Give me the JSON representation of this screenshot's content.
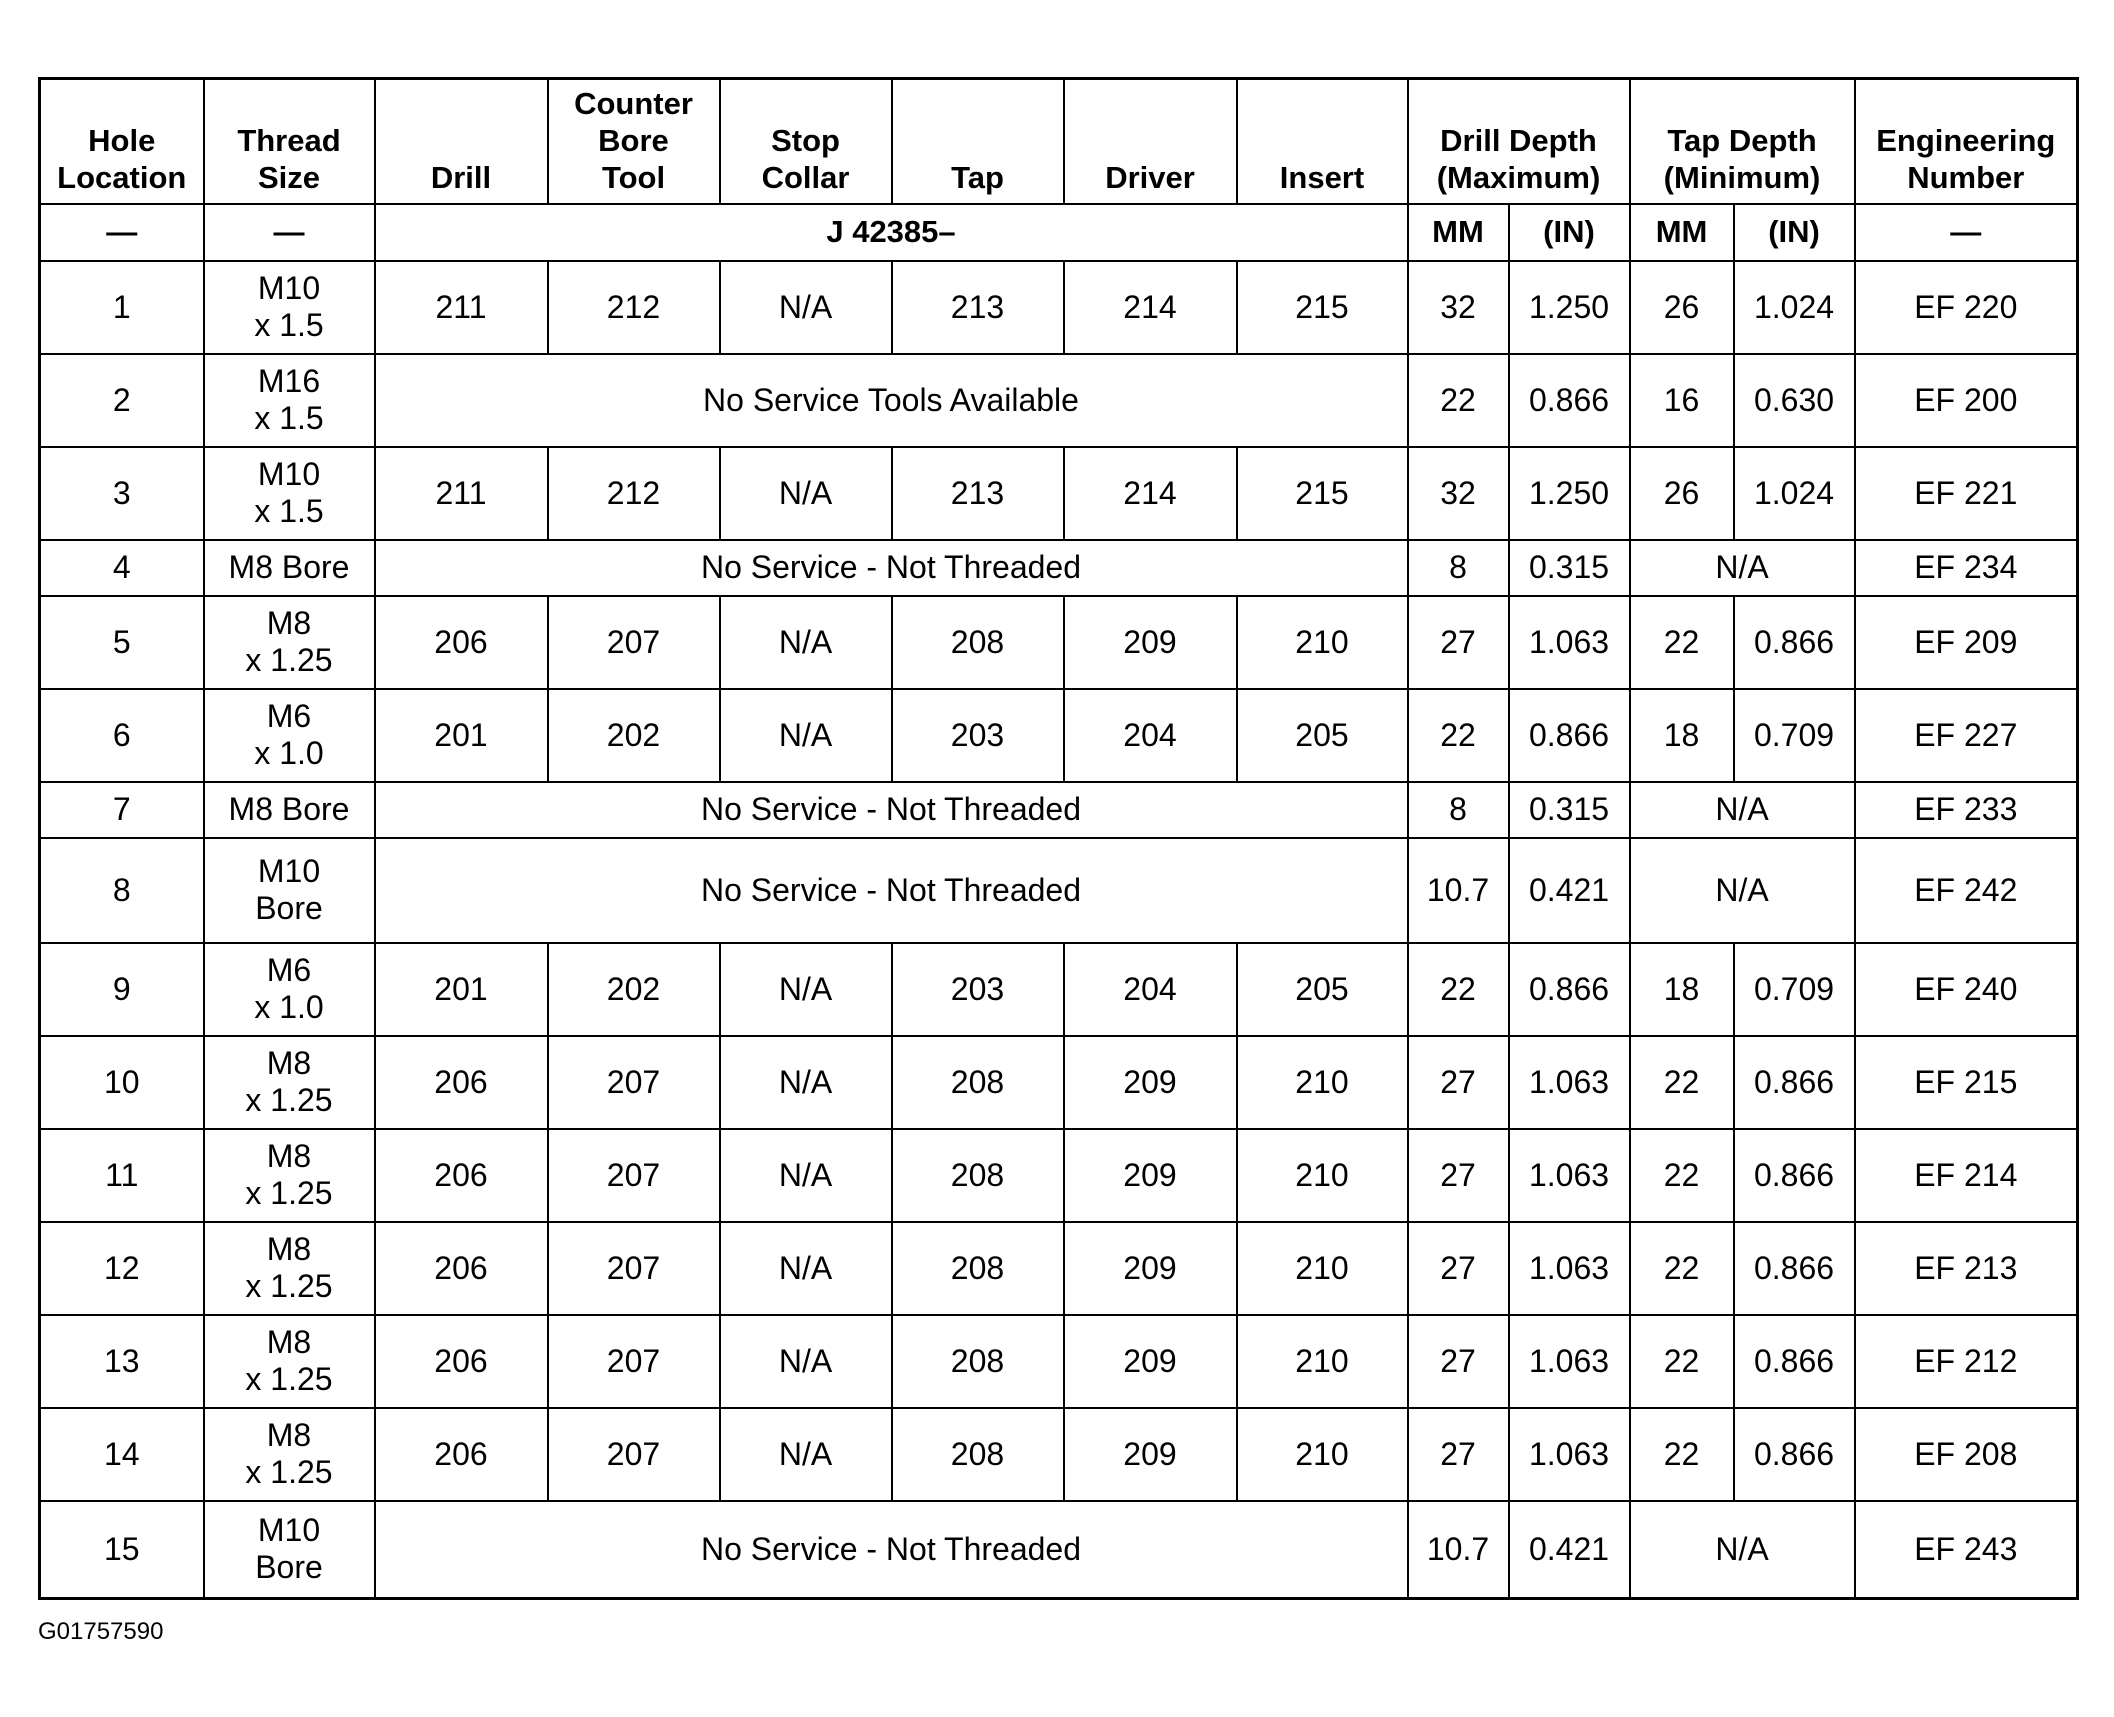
{
  "table": {
    "header": [
      "Hole\nLocation",
      "Thread\nSize",
      "Drill",
      "Counter\nBore\nTool",
      "Stop\nCollar",
      "Tap",
      "Driver",
      "Insert",
      "Drill Depth\n(Maximum)",
      "Tap Depth\n(Minimum)",
      "Engineering\nNumber"
    ],
    "subheader": [
      "—",
      "—",
      "J 42385–",
      "MM",
      "(IN)",
      "MM",
      "(IN)",
      "—"
    ],
    "rows": [
      [
        "1",
        "M10\nx 1.5",
        "211",
        "212",
        "N/A",
        "213",
        "214",
        "215",
        "32",
        "1.250",
        "26",
        "1.024",
        "EF 220"
      ],
      [
        "2",
        "M16\nx 1.5",
        "No Service Tools Available",
        "22",
        "0.866",
        "16",
        "0.630",
        "EF 200"
      ],
      [
        "3",
        "M10\nx 1.5",
        "211",
        "212",
        "N/A",
        "213",
        "214",
        "215",
        "32",
        "1.250",
        "26",
        "1.024",
        "EF 221"
      ],
      [
        "4",
        "M8 Bore",
        "No Service - Not Threaded",
        "8",
        "0.315",
        "N/A",
        "EF 234"
      ],
      [
        "5",
        "M8\nx 1.25",
        "206",
        "207",
        "N/A",
        "208",
        "209",
        "210",
        "27",
        "1.063",
        "22",
        "0.866",
        "EF 209"
      ],
      [
        "6",
        "M6\nx 1.0",
        "201",
        "202",
        "N/A",
        "203",
        "204",
        "205",
        "22",
        "0.866",
        "18",
        "0.709",
        "EF 227"
      ],
      [
        "7",
        "M8 Bore",
        "No Service - Not Threaded",
        "8",
        "0.315",
        "N/A",
        "EF 233"
      ],
      [
        "8",
        "M10\nBore",
        "No Service - Not Threaded",
        "10.7",
        "0.421",
        "N/A",
        "EF 242"
      ],
      [
        "9",
        "M6\nx 1.0",
        "201",
        "202",
        "N/A",
        "203",
        "204",
        "205",
        "22",
        "0.866",
        "18",
        "0.709",
        "EF 240"
      ],
      [
        "10",
        "M8\nx 1.25",
        "206",
        "207",
        "N/A",
        "208",
        "209",
        "210",
        "27",
        "1.063",
        "22",
        "0.866",
        "EF 215"
      ],
      [
        "11",
        "M8\nx 1.25",
        "206",
        "207",
        "N/A",
        "208",
        "209",
        "210",
        "27",
        "1.063",
        "22",
        "0.866",
        "EF 214"
      ],
      [
        "12",
        "M8\nx 1.25",
        "206",
        "207",
        "N/A",
        "208",
        "209",
        "210",
        "27",
        "1.063",
        "22",
        "0.866",
        "EF 213"
      ],
      [
        "13",
        "M8\nx 1.25",
        "206",
        "207",
        "N/A",
        "208",
        "209",
        "210",
        "27",
        "1.063",
        "22",
        "0.866",
        "EF 212"
      ],
      [
        "14",
        "M8\nx 1.25",
        "206",
        "207",
        "N/A",
        "208",
        "209",
        "210",
        "27",
        "1.063",
        "22",
        "0.866",
        "EF 208"
      ],
      [
        "15",
        "M10\nBore",
        "No Service - Not Threaded",
        "10.7",
        "0.421",
        "N/A",
        "EF 243"
      ]
    ]
  },
  "footer": "G01757590"
}
